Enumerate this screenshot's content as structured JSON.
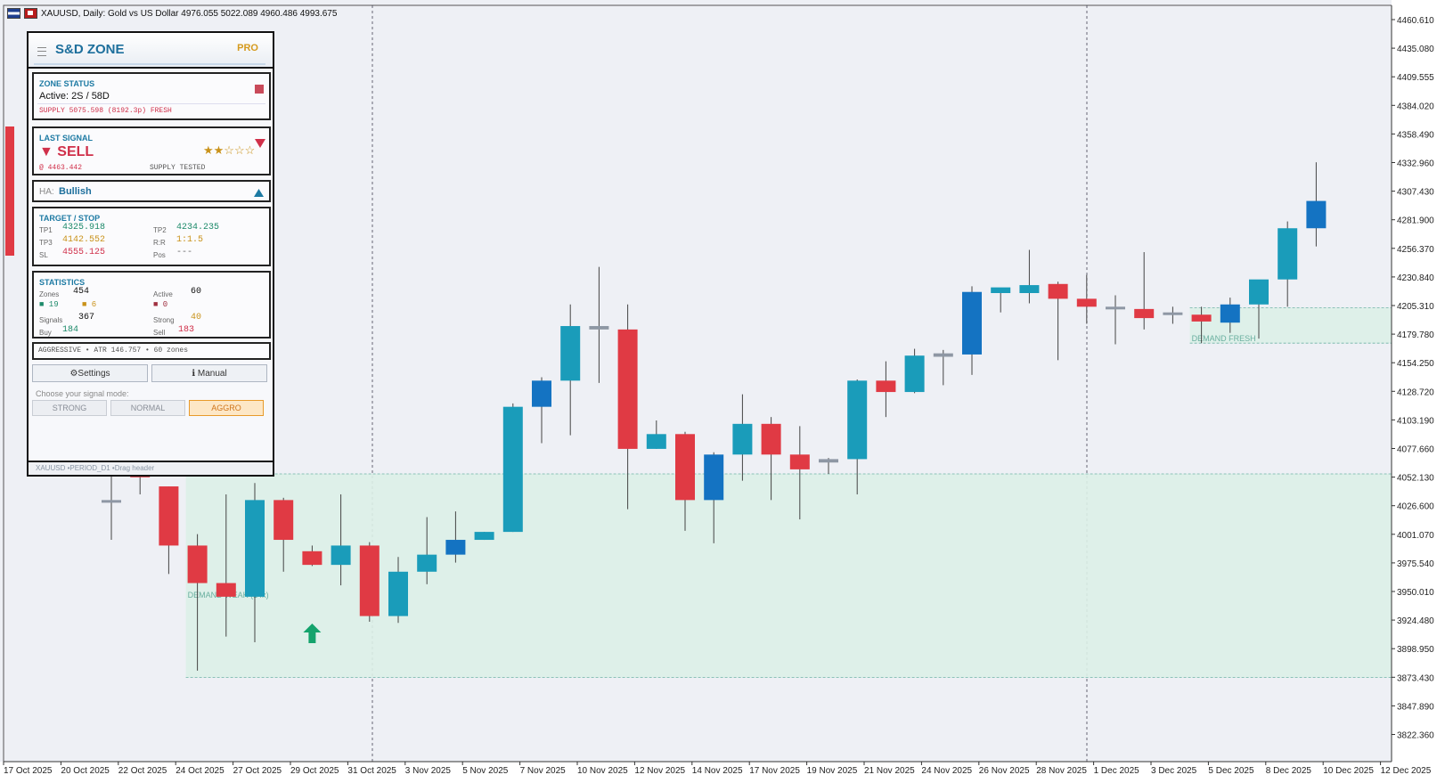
{
  "window": {
    "title": "XAUUSD, Daily:  Gold vs US Dollar  4976.055 5022.089 4960.486 4993.675",
    "icons": [
      "flag-icon",
      "chart-type-icon"
    ]
  },
  "colors": {
    "bull": "#1a9cba",
    "bull_alt": "#1473c2",
    "bear": "#e03a44",
    "doji": "#8e97a4",
    "zone_fill": "#dcf0e8",
    "zone_border": "#6fb3a5",
    "accent": "#1d6f9c",
    "gold": "#d59a1e",
    "sell": "#d0304a"
  },
  "price_axis": {
    "labels": [
      "4460.610",
      "4435.080",
      "4409.555",
      "4384.020",
      "4358.490",
      "4332.960",
      "4307.430",
      "4281.900",
      "4256.370",
      "4230.840",
      "4205.310",
      "4179.780",
      "4154.250",
      "4128.720",
      "4103.190",
      "4077.660",
      "4052.130",
      "4026.600",
      "4001.070",
      "3975.540",
      "3950.010",
      "3924.480",
      "3898.950",
      "3873.430",
      "3847.890",
      "3822.360"
    ]
  },
  "time_axis": {
    "labels": [
      "17 Oct 2025",
      "20 Oct 2025",
      "22 Oct 2025",
      "24 Oct 2025",
      "27 Oct 2025",
      "29 Oct 2025",
      "31 Oct 2025",
      "3 Nov 2025",
      "5 Nov 2025",
      "7 Nov 2025",
      "10 Nov 2025",
      "12 Nov 2025",
      "14 Nov 2025",
      "17 Nov 2025",
      "19 Nov 2025",
      "21 Nov 2025",
      "24 Nov 2025",
      "26 Nov 2025",
      "28 Nov 2025",
      "1 Dec 2025",
      "3 Dec 2025",
      "5 Dec 2025",
      "8 Dec 2025",
      "10 Dec 2025",
      "12 Dec 2025"
    ]
  },
  "chart_data": {
    "type": "candlestick",
    "symbol": "XAUUSD",
    "timeframe": "Daily",
    "ylim": [
      3810,
      4475
    ],
    "candles": [
      {
        "o": 4040,
        "h": 4075,
        "l": 4005,
        "c": 4040
      },
      {
        "o": 4075,
        "h": 4085,
        "l": 4045,
        "c": 4060
      },
      {
        "o": 4052,
        "h": 4052,
        "l": 3975,
        "c": 4000
      },
      {
        "o": 4000,
        "h": 4010,
        "l": 3890,
        "c": 3967
      },
      {
        "o": 3967,
        "h": 4045,
        "l": 3920,
        "c": 3955
      },
      {
        "o": 3955,
        "h": 4055,
        "l": 3915,
        "c": 4040
      },
      {
        "o": 4040,
        "h": 4042,
        "l": 3977,
        "c": 4005
      },
      {
        "o": 3995,
        "h": 4000,
        "l": 3982,
        "c": 3983
      },
      {
        "o": 3983,
        "h": 4045,
        "l": 3965,
        "c": 4000
      },
      {
        "o": 4000,
        "h": 4003,
        "l": 3933,
        "c": 3938
      },
      {
        "o": 3938,
        "h": 3990,
        "l": 3932,
        "c": 3977
      },
      {
        "o": 3977,
        "h": 4025,
        "l": 3966,
        "c": 3992
      },
      {
        "o": 3992,
        "h": 4030,
        "l": 3985,
        "c": 4005
      },
      {
        "o": 4005,
        "h": 4012,
        "l": 4005,
        "c": 4012
      },
      {
        "o": 4012,
        "h": 4125,
        "l": 4012,
        "c": 4122
      },
      {
        "o": 4122,
        "h": 4148,
        "l": 4090,
        "c": 4145
      },
      {
        "o": 4145,
        "h": 4212,
        "l": 4097,
        "c": 4193
      },
      {
        "o": 4193,
        "h": 4245,
        "l": 4143,
        "c": 4190
      },
      {
        "o": 4190,
        "h": 4212,
        "l": 4032,
        "c": 4085
      },
      {
        "o": 4085,
        "h": 4110,
        "l": 4085,
        "c": 4098
      },
      {
        "o": 4098,
        "h": 4100,
        "l": 4013,
        "c": 4040
      },
      {
        "o": 4040,
        "h": 4082,
        "l": 4002,
        "c": 4080
      },
      {
        "o": 4080,
        "h": 4133,
        "l": 4057,
        "c": 4107
      },
      {
        "o": 4107,
        "h": 4113,
        "l": 4040,
        "c": 4080
      },
      {
        "o": 4080,
        "h": 4105,
        "l": 4023,
        "c": 4067
      },
      {
        "o": 4073,
        "h": 4077,
        "l": 4063,
        "c": 4076
      },
      {
        "o": 4076,
        "h": 4146,
        "l": 4045,
        "c": 4145
      },
      {
        "o": 4145,
        "h": 4162,
        "l": 4113,
        "c": 4135
      },
      {
        "o": 4135,
        "h": 4173,
        "l": 4134,
        "c": 4167
      },
      {
        "o": 4166,
        "h": 4172,
        "l": 4141,
        "c": 4169
      },
      {
        "o": 4168,
        "h": 4228,
        "l": 4150,
        "c": 4223
      },
      {
        "o": 4222,
        "h": 4226,
        "l": 4205,
        "c": 4227
      },
      {
        "o": 4222,
        "h": 4260,
        "l": 4213,
        "c": 4229
      },
      {
        "o": 4230,
        "h": 4232,
        "l": 4163,
        "c": 4217
      },
      {
        "o": 4217,
        "h": 4238,
        "l": 4195,
        "c": 4210
      },
      {
        "o": 4210,
        "h": 4220,
        "l": 4177,
        "c": 4210
      },
      {
        "o": 4208,
        "h": 4258,
        "l": 4190,
        "c": 4200
      },
      {
        "o": 4205,
        "h": 4210,
        "l": 4195,
        "c": 4205
      },
      {
        "o": 4203,
        "h": 4210,
        "l": 4178,
        "c": 4197
      },
      {
        "o": 4196,
        "h": 4218,
        "l": 4187,
        "c": 4212
      },
      {
        "o": 4212,
        "h": 4232,
        "l": 4182,
        "c": 4234
      },
      {
        "o": 4234,
        "h": 4285,
        "l": 4210,
        "c": 4279
      },
      {
        "o": 4279,
        "h": 4337,
        "l": 4263,
        "c": 4303
      }
    ],
    "zones": [
      {
        "type": "demand",
        "label": "DEMAND WEAK (14x)",
        "top": 4063,
        "bottom": 3884,
        "start": 3
      },
      {
        "type": "demand",
        "label": "DEMAND FRESH",
        "top": 4209,
        "bottom": 4178,
        "start": 38
      }
    ],
    "signals": [
      {
        "type": "buy-arrow",
        "index": 7,
        "price": 3922
      }
    ]
  },
  "panel": {
    "title": "S&D ZONE",
    "badge": "PRO",
    "zone_status": {
      "heading": "ZONE STATUS",
      "active": "Active: 2S / 58D",
      "detail": "SUPPLY 5075.598 (8192.3p) FRESH"
    },
    "last_signal": {
      "heading": "LAST SIGNAL",
      "signal": "▼ SELL",
      "stars": "★★☆☆☆",
      "price": "@ 4463.442",
      "note": "SUPPLY TESTED"
    },
    "ha": {
      "label": "HA:",
      "value": "Bullish"
    },
    "target_stop": {
      "heading": "TARGET / STOP",
      "tp1_label": "TP1",
      "tp1": "4325.918",
      "tp2_label": "TP2",
      "tp2": "4234.235",
      "tp3_label": "TP3",
      "tp3": "4142.552",
      "rr_label": "R:R",
      "rr": "1:1.5",
      "sl_label": "SL",
      "sl": "4555.125",
      "pos_label": "Pos",
      "pos": "---"
    },
    "statistics": {
      "heading": "STATISTICS",
      "zones_label": "Zones",
      "zones": "454",
      "active_label": "Active",
      "active": "60",
      "green_count": "■ 19",
      "gold_count": "■ 6",
      "red_count": "■ 0",
      "signals_label": "Signals",
      "signals": "367",
      "strong_label": "Strong",
      "strong": "40",
      "buy_label": "Buy",
      "buy": "184",
      "sell_label": "Sell",
      "sell": "183"
    },
    "mode_info": "AGGRESSIVE  • ATR 146.757  • 60 zones",
    "settings_label": "⚙Settings",
    "manual_label": "ℹ Manual",
    "choose_label": "Choose your signal mode:",
    "modes": [
      "STRONG",
      "NORMAL",
      "AGGRO"
    ],
    "active_mode": "AGGRO",
    "footer": "XAUUSD •PERIOD_D1 •Drag header"
  }
}
